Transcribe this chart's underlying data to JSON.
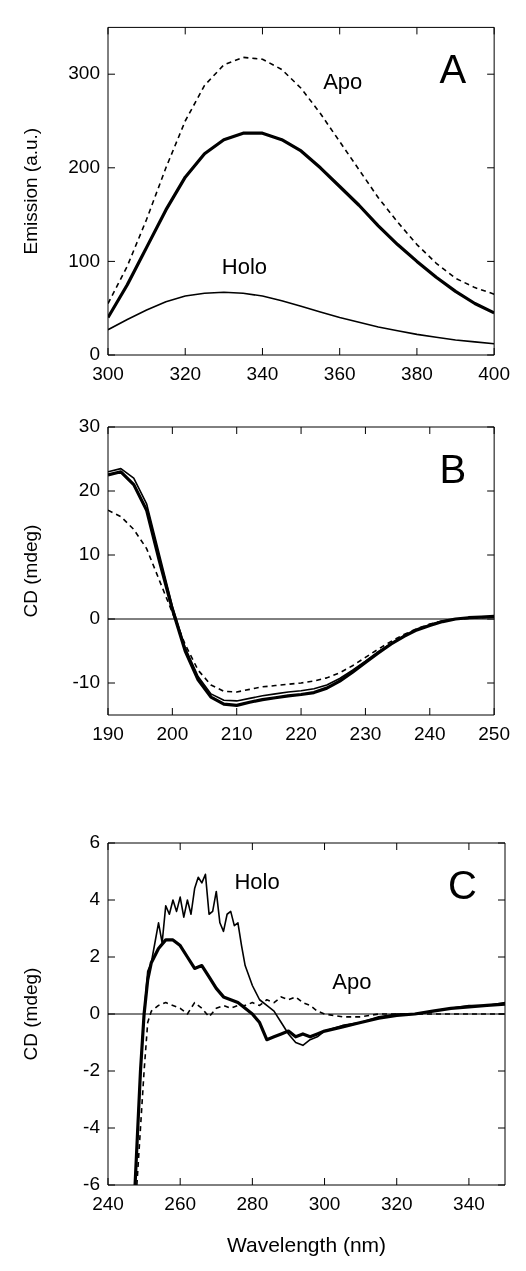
{
  "chart_data": [
    {
      "type": "line",
      "ylabel": "Emission (a.u.)",
      "xlim": [
        300,
        400
      ],
      "xticks": [
        300,
        320,
        340,
        360,
        380,
        400
      ],
      "ylim": [
        0,
        350
      ],
      "yticks": [
        0,
        100,
        200,
        300
      ],
      "marker": "none",
      "annotations": [
        "A"
      ],
      "series": [
        {
          "name": "Apo",
          "color": "#000000",
          "line_style": "dashed",
          "x": [
            300,
            305,
            310,
            315,
            320,
            325,
            330,
            335,
            340,
            345,
            350,
            355,
            360,
            365,
            370,
            375,
            380,
            385,
            390,
            395,
            400
          ],
          "values": [
            55,
            95,
            145,
            200,
            250,
            288,
            310,
            318,
            316,
            305,
            285,
            258,
            228,
            198,
            168,
            142,
            118,
            98,
            82,
            72,
            65
          ]
        },
        {
          "color": "#000000",
          "line_style": "solid",
          "x": [
            300,
            305,
            310,
            315,
            320,
            325,
            330,
            335,
            340,
            345,
            350,
            355,
            360,
            365,
            370,
            375,
            380,
            385,
            390,
            395,
            400
          ],
          "values": [
            40,
            75,
            115,
            155,
            190,
            215,
            230,
            237,
            237,
            230,
            218,
            200,
            180,
            160,
            138,
            118,
            100,
            83,
            68,
            55,
            45
          ]
        },
        {
          "name": "Holo",
          "color": "#000000",
          "line_style": "solid",
          "x": [
            300,
            305,
            310,
            315,
            320,
            325,
            330,
            335,
            340,
            345,
            350,
            355,
            360,
            365,
            370,
            375,
            380,
            385,
            390,
            395,
            400
          ],
          "values": [
            27,
            38,
            48,
            57,
            63,
            66,
            67,
            66,
            63,
            58,
            52,
            46,
            40,
            35,
            30,
            26,
            22,
            19,
            16,
            14,
            12
          ]
        }
      ]
    },
    {
      "type": "line",
      "ylabel": "CD (mdeg)",
      "xlim": [
        190,
        250
      ],
      "xticks": [
        190,
        200,
        210,
        220,
        230,
        240,
        250
      ],
      "ylim": [
        -15,
        30
      ],
      "yticks": [
        -10,
        0,
        10,
        20,
        30
      ],
      "marker": "none",
      "annotations": [
        "B"
      ],
      "ref_lines": [
        {
          "axis": "y",
          "value": 0
        }
      ],
      "series": [
        {
          "color": "#000000",
          "line_style": "dashed",
          "x": [
            190,
            192,
            194,
            196,
            198,
            200,
            202,
            204,
            206,
            208,
            210,
            212,
            214,
            216,
            218,
            220,
            222,
            224,
            226,
            228,
            230,
            232,
            234,
            236,
            238,
            240,
            242,
            244,
            246,
            248,
            250
          ],
          "values": [
            17,
            16,
            14,
            11,
            6,
            1,
            -4,
            -8,
            -10.3,
            -11.3,
            -11.4,
            -11,
            -10.6,
            -10.4,
            -10.2,
            -10,
            -9.7,
            -9.2,
            -8.4,
            -7.3,
            -6,
            -4.7,
            -3.5,
            -2.4,
            -1.5,
            -0.8,
            -0.3,
            0,
            0.1,
            0.2,
            0.3
          ]
        },
        {
          "color": "#000000",
          "line_style": "solid",
          "x": [
            190,
            192,
            194,
            196,
            198,
            200,
            202,
            204,
            206,
            208,
            210,
            212,
            214,
            216,
            218,
            220,
            222,
            224,
            226,
            228,
            230,
            232,
            234,
            236,
            238,
            240,
            242,
            244,
            246,
            248,
            250
          ],
          "values": [
            22.5,
            23,
            21,
            17,
            9,
            1.5,
            -5,
            -9.5,
            -12.2,
            -13.3,
            -13.5,
            -13,
            -12.6,
            -12.3,
            -12,
            -11.8,
            -11.5,
            -10.8,
            -9.7,
            -8.3,
            -6.8,
            -5.3,
            -3.9,
            -2.7,
            -1.7,
            -1,
            -0.4,
            0,
            0.2,
            0.3,
            0.4
          ]
        },
        {
          "color": "#000000",
          "line_style": "solid",
          "x": [
            190,
            192,
            194,
            196,
            198,
            200,
            202,
            204,
            206,
            208,
            210,
            212,
            214,
            216,
            218,
            220,
            222,
            224,
            226,
            228,
            230,
            232,
            234,
            236,
            238,
            240,
            242,
            244,
            246,
            248,
            250
          ],
          "values": [
            23,
            23.5,
            22,
            18,
            10,
            2,
            -4.5,
            -9,
            -11.7,
            -12.7,
            -12.8,
            -12.4,
            -12,
            -11.7,
            -11.4,
            -11.2,
            -10.9,
            -10.3,
            -9.3,
            -8,
            -6.6,
            -5.1,
            -3.8,
            -2.6,
            -1.6,
            -0.9,
            -0.3,
            0,
            0.2,
            0.3,
            0.4
          ]
        }
      ]
    },
    {
      "type": "line",
      "xlabel": "Wavelength (nm)",
      "ylabel": "CD (mdeg)",
      "xlim": [
        240,
        350
      ],
      "xticks": [
        240,
        260,
        280,
        300,
        320,
        340
      ],
      "ylim": [
        -6,
        6
      ],
      "yticks": [
        -6,
        -4,
        -2,
        0,
        2,
        4,
        6
      ],
      "marker": "none",
      "annotations": [
        "C"
      ],
      "ref_lines": [
        {
          "axis": "y",
          "value": 0
        }
      ],
      "series": [
        {
          "name": "Apo",
          "color": "#000000",
          "line_style": "dashed",
          "x": [
            248,
            250,
            251,
            252,
            254,
            256,
            258,
            260,
            262,
            264,
            266,
            268,
            270,
            272,
            274,
            276,
            278,
            280,
            282,
            284,
            286,
            288,
            290,
            292,
            294,
            296,
            298,
            300,
            305,
            310,
            315,
            320,
            330,
            340,
            350
          ],
          "values": [
            -6,
            -2,
            -0.3,
            0.1,
            0.3,
            0.4,
            0.3,
            0.2,
            0,
            0.4,
            0.2,
            -0.1,
            0.2,
            0.3,
            0.2,
            0.3,
            0.3,
            0.4,
            0.3,
            0.5,
            0.4,
            0.6,
            0.5,
            0.6,
            0.4,
            0.3,
            0.1,
            0,
            -0.1,
            -0.1,
            0,
            0,
            0,
            0,
            0
          ]
        },
        {
          "color": "#000000",
          "line_style": "solid",
          "x": [
            247.5,
            249,
            250,
            251,
            252,
            254,
            256,
            258,
            260,
            262,
            264,
            266,
            268,
            270,
            272,
            274,
            276,
            278,
            280,
            282,
            284,
            286,
            288,
            290,
            292,
            294,
            296,
            298,
            300,
            305,
            310,
            315,
            320,
            325,
            330,
            335,
            340,
            345,
            350
          ],
          "values": [
            -6,
            -2,
            0,
            1.2,
            1.8,
            2.3,
            2.6,
            2.6,
            2.4,
            2,
            1.6,
            1.7,
            1.3,
            0.9,
            0.6,
            0.5,
            0.4,
            0.2,
            0,
            -0.3,
            -0.9,
            -0.8,
            -0.7,
            -0.6,
            -0.8,
            -0.7,
            -0.8,
            -0.7,
            -0.6,
            -0.45,
            -0.3,
            -0.15,
            -0.05,
            0,
            0.1,
            0.2,
            0.25,
            0.3,
            0.35
          ]
        },
        {
          "name": "Holo",
          "color": "#000000",
          "line_style": "solid",
          "x": [
            247.5,
            249,
            250,
            251,
            252,
            253,
            254,
            255,
            256,
            257,
            258,
            259,
            260,
            261,
            262,
            263,
            264,
            265,
            266,
            267,
            268,
            269,
            270,
            271,
            272,
            273,
            274,
            275,
            276,
            277,
            278,
            280,
            282,
            284,
            286,
            288,
            290,
            292,
            294,
            296,
            298,
            300,
            305,
            310,
            315,
            320,
            325,
            330,
            335,
            340,
            345,
            350
          ],
          "values": [
            -6,
            -2,
            0,
            1.5,
            1.8,
            2.5,
            3.2,
            2.5,
            3.8,
            3.5,
            4,
            3.6,
            4.1,
            3.4,
            4,
            3.5,
            4.4,
            4.8,
            4.6,
            4.9,
            3.5,
            3.6,
            4.3,
            3.2,
            2.9,
            3.5,
            3.6,
            3.1,
            3.2,
            2.4,
            1.7,
            1,
            0.5,
            0.3,
            0.1,
            -0.3,
            -0.7,
            -1,
            -1.1,
            -0.9,
            -0.8,
            -0.6,
            -0.4,
            -0.3,
            -0.1,
            0,
            0,
            0.1,
            0.2,
            0.3,
            0.3,
            0.4
          ]
        }
      ]
    }
  ]
}
